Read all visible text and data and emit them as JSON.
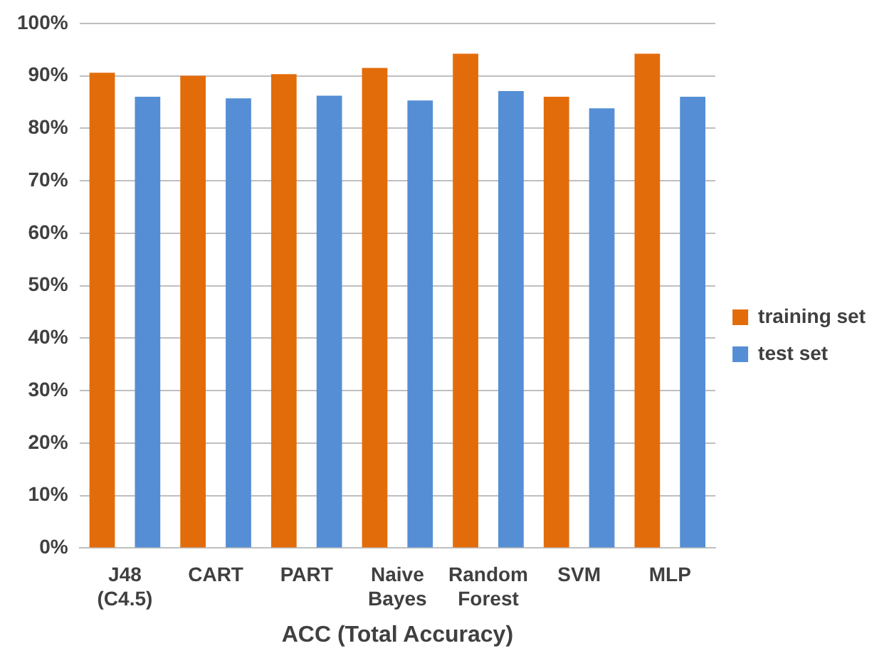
{
  "chart_data": {
    "type": "bar",
    "xlabel": "ACC (Total Accuracy)",
    "categories": [
      "J48 (C4.5)",
      "CART",
      "PART",
      "Naive Bayes",
      "Random Forest",
      "SVM",
      "MLP"
    ],
    "series": [
      {
        "name": "training set",
        "color": "#e36c0a",
        "values": [
          90.6,
          90.0,
          90.3,
          91.5,
          94.2,
          86.0,
          94.2
        ]
      },
      {
        "name": "test set",
        "color": "#558ed5",
        "values": [
          86.0,
          85.7,
          86.2,
          85.3,
          87.1,
          83.8,
          86.0
        ]
      }
    ],
    "ylim": [
      0,
      100
    ],
    "yticks": [
      {
        "value": 0,
        "label": "0%"
      },
      {
        "value": 10,
        "label": "10%"
      },
      {
        "value": 20,
        "label": "20%"
      },
      {
        "value": 30,
        "label": "30%"
      },
      {
        "value": 40,
        "label": "40%"
      },
      {
        "value": 50,
        "label": "50%"
      },
      {
        "value": 60,
        "label": "60%"
      },
      {
        "value": 70,
        "label": "70%"
      },
      {
        "value": 80,
        "label": "80%"
      },
      {
        "value": 90,
        "label": "90%"
      },
      {
        "value": 100,
        "label": "100%"
      }
    ],
    "grid": "y",
    "legend": "right"
  }
}
